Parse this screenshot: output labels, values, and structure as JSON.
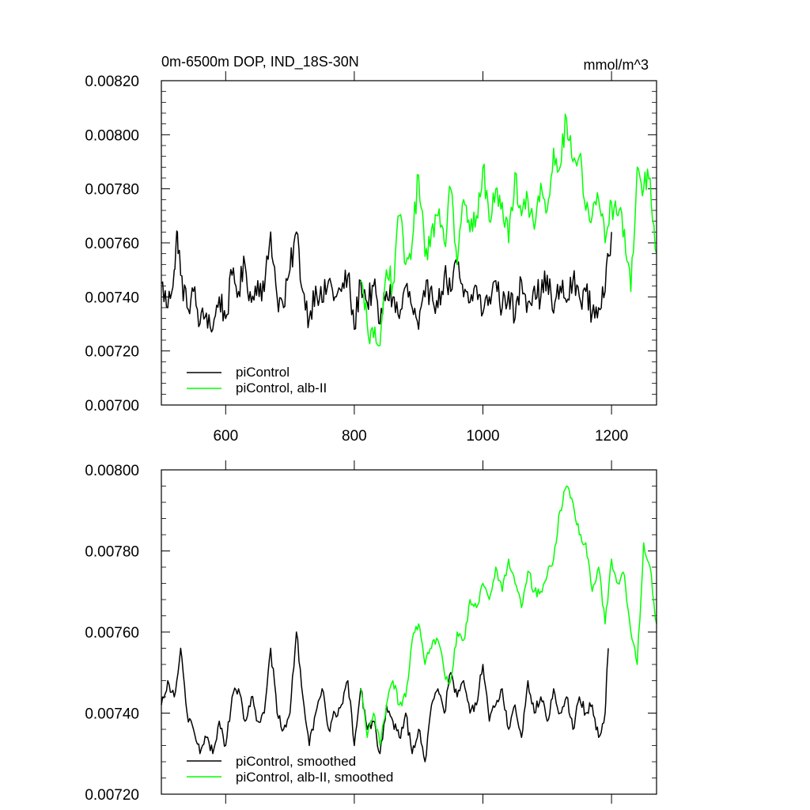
{
  "chart_data": [
    {
      "type": "line",
      "title": "0m-6500m DOP, IND_18S-30N",
      "units": "mmol/m^3",
      "xlabel": "",
      "ylabel": "",
      "xlim": [
        500,
        1270
      ],
      "ylim": [
        0.007,
        0.0082
      ],
      "x_ticks": [
        600,
        800,
        1000,
        1200
      ],
      "x_tick_labels": [
        "600",
        "800",
        "1000",
        "1200"
      ],
      "y_ticks": [
        0.007,
        0.0072,
        0.0074,
        0.0076,
        0.0078,
        0.008,
        0.0082
      ],
      "y_tick_labels": [
        "0.00700",
        "0.00720",
        "0.00740",
        "0.00760",
        "0.00780",
        "0.00800",
        "0.00820"
      ],
      "grid": false,
      "legend": "bottom-left",
      "series": [
        {
          "name": "piControl",
          "color": "#000000",
          "x": [
            500,
            510,
            520,
            525,
            530,
            540,
            550,
            560,
            570,
            580,
            590,
            600,
            610,
            620,
            630,
            640,
            650,
            660,
            670,
            680,
            690,
            700,
            710,
            720,
            730,
            740,
            750,
            760,
            770,
            780,
            790,
            800,
            810,
            820,
            830,
            840,
            850,
            860,
            870,
            880,
            890,
            900,
            910,
            920,
            930,
            940,
            950,
            960,
            970,
            980,
            990,
            1000,
            1010,
            1020,
            1030,
            1040,
            1050,
            1060,
            1070,
            1080,
            1090,
            1100,
            1110,
            1120,
            1130,
            1140,
            1150,
            1160,
            1170,
            1180,
            1190,
            1200
          ],
          "y": [
            0.00745,
            0.00736,
            0.0075,
            0.00764,
            0.00748,
            0.00736,
            0.00742,
            0.0073,
            0.00734,
            0.00728,
            0.0074,
            0.00732,
            0.00748,
            0.00742,
            0.00752,
            0.00738,
            0.00746,
            0.00742,
            0.00764,
            0.0074,
            0.00736,
            0.0075,
            0.00764,
            0.00742,
            0.00732,
            0.00744,
            0.00738,
            0.00746,
            0.0074,
            0.00742,
            0.00748,
            0.00728,
            0.00746,
            0.00738,
            0.00744,
            0.0073,
            0.00742,
            0.0074,
            0.00732,
            0.00744,
            0.00736,
            0.00728,
            0.0074,
            0.00744,
            0.00736,
            0.00748,
            0.00742,
            0.00752,
            0.0074,
            0.00738,
            0.00744,
            0.00734,
            0.0074,
            0.00746,
            0.00736,
            0.00742,
            0.00732,
            0.00746,
            0.00738,
            0.00744,
            0.0074,
            0.00748,
            0.00734,
            0.00744,
            0.00738,
            0.00746,
            0.0074,
            0.00742,
            0.00734,
            0.00736,
            0.00742,
            0.00764
          ]
        },
        {
          "name": "piControl, alb-II",
          "color": "#00ff00",
          "x": [
            810,
            820,
            830,
            840,
            850,
            860,
            870,
            880,
            890,
            900,
            910,
            920,
            930,
            940,
            950,
            960,
            970,
            980,
            990,
            1000,
            1010,
            1020,
            1030,
            1040,
            1050,
            1060,
            1070,
            1080,
            1090,
            1100,
            1110,
            1120,
            1130,
            1140,
            1150,
            1160,
            1170,
            1180,
            1190,
            1200,
            1210,
            1220,
            1230,
            1240,
            1250,
            1260,
            1270
          ],
          "y": [
            0.00746,
            0.0073,
            0.00725,
            0.00722,
            0.0075,
            0.00745,
            0.0077,
            0.00752,
            0.0076,
            0.00785,
            0.00755,
            0.00765,
            0.0077,
            0.0076,
            0.0078,
            0.00752,
            0.00776,
            0.00764,
            0.0077,
            0.00788,
            0.00768,
            0.0078,
            0.00775,
            0.0076,
            0.00786,
            0.0077,
            0.00776,
            0.00765,
            0.00782,
            0.00772,
            0.00795,
            0.00788,
            0.00806,
            0.0079,
            0.00792,
            0.00772,
            0.0077,
            0.00776,
            0.0076,
            0.00775,
            0.0077,
            0.00765,
            0.00742,
            0.00788,
            0.0078,
            0.00784,
            0.00756
          ]
        }
      ]
    },
    {
      "type": "line",
      "title": "",
      "xlabel": "",
      "ylabel": "",
      "xlim": [
        500,
        1270
      ],
      "ylim": [
        0.0072,
        0.008
      ],
      "x_ticks": [
        600,
        800,
        1000,
        1200
      ],
      "y_ticks": [
        0.0072,
        0.0074,
        0.0076,
        0.0078,
        0.008
      ],
      "y_tick_labels": [
        "0.00720",
        "0.00740",
        "0.00760",
        "0.00780",
        "0.00800"
      ],
      "grid": false,
      "legend": "bottom-left",
      "series": [
        {
          "name": "piControl, smoothed",
          "color": "#000000",
          "x": [
            500,
            510,
            520,
            530,
            540,
            550,
            560,
            570,
            580,
            590,
            600,
            610,
            620,
            630,
            640,
            650,
            660,
            670,
            680,
            690,
            700,
            710,
            720,
            730,
            740,
            750,
            760,
            770,
            780,
            790,
            800,
            810,
            820,
            830,
            840,
            850,
            860,
            870,
            880,
            890,
            900,
            910,
            920,
            930,
            940,
            950,
            960,
            970,
            980,
            990,
            1000,
            1010,
            1020,
            1030,
            1040,
            1050,
            1060,
            1070,
            1080,
            1090,
            1100,
            1110,
            1120,
            1130,
            1140,
            1150,
            1160,
            1170,
            1180,
            1190,
            1195
          ],
          "y": [
            0.00742,
            0.00748,
            0.00744,
            0.00756,
            0.0074,
            0.00736,
            0.0073,
            0.00734,
            0.0073,
            0.00738,
            0.00732,
            0.00744,
            0.00746,
            0.00738,
            0.00744,
            0.00738,
            0.0074,
            0.00756,
            0.0074,
            0.00736,
            0.0074,
            0.0076,
            0.00744,
            0.00732,
            0.0074,
            0.00746,
            0.00736,
            0.0074,
            0.00742,
            0.00748,
            0.00732,
            0.00746,
            0.00736,
            0.00738,
            0.0073,
            0.00742,
            0.00738,
            0.00734,
            0.0074,
            0.0073,
            0.00736,
            0.00728,
            0.00742,
            0.00746,
            0.0074,
            0.0075,
            0.00744,
            0.00748,
            0.0074,
            0.00742,
            0.00752,
            0.00738,
            0.00742,
            0.00746,
            0.00736,
            0.00742,
            0.00734,
            0.00748,
            0.0074,
            0.00744,
            0.00738,
            0.00746,
            0.0074,
            0.00744,
            0.00736,
            0.00744,
            0.0074,
            0.00742,
            0.00734,
            0.0074,
            0.00756
          ]
        },
        {
          "name": "piControl, alb-II, smoothed",
          "color": "#00ff00",
          "x": [
            810,
            820,
            830,
            840,
            850,
            860,
            870,
            880,
            890,
            900,
            910,
            920,
            930,
            940,
            950,
            960,
            970,
            980,
            990,
            1000,
            1010,
            1020,
            1030,
            1040,
            1050,
            1060,
            1070,
            1080,
            1090,
            1100,
            1110,
            1120,
            1130,
            1140,
            1150,
            1160,
            1170,
            1180,
            1190,
            1200,
            1210,
            1220,
            1230,
            1240,
            1250,
            1260,
            1270
          ],
          "y": [
            0.00746,
            0.00734,
            0.0074,
            0.00732,
            0.00742,
            0.00748,
            0.00742,
            0.00744,
            0.00758,
            0.00762,
            0.00752,
            0.00756,
            0.00758,
            0.0075,
            0.00748,
            0.0076,
            0.00758,
            0.00768,
            0.00766,
            0.00772,
            0.00768,
            0.00776,
            0.0077,
            0.00778,
            0.00772,
            0.00766,
            0.00775,
            0.0077,
            0.0077,
            0.00774,
            0.00778,
            0.0079,
            0.00796,
            0.00792,
            0.00784,
            0.00782,
            0.0077,
            0.00776,
            0.00762,
            0.00778,
            0.00772,
            0.00774,
            0.0076,
            0.00752,
            0.00782,
            0.00776,
            0.00762
          ]
        }
      ]
    }
  ]
}
